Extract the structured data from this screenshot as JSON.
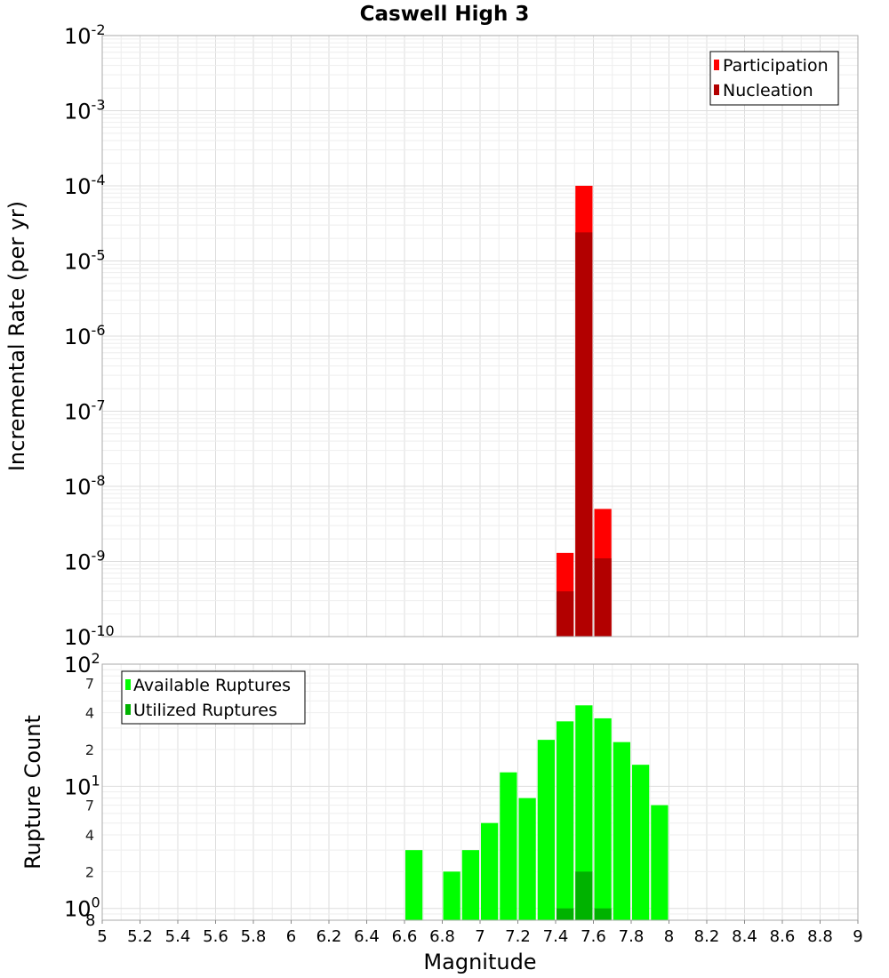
{
  "chart_data": [
    {
      "type": "bar",
      "title": "Caswell High 3",
      "xlabel": "Magnitude",
      "ylabel": "Incremental Rate (per yr)",
      "yscale": "log",
      "xlim": [
        5,
        9
      ],
      "ylim": [
        1e-10,
        0.01
      ],
      "y_tick_exponents": [
        "-10",
        "-9",
        "-8",
        "-7",
        "-6",
        "-5",
        "-4",
        "-3",
        "-2"
      ],
      "x_ticks": [
        "5",
        "5.2",
        "5.4",
        "5.6",
        "5.8",
        "6",
        "6.2",
        "6.4",
        "6.6",
        "6.8",
        "7",
        "7.2",
        "7.4",
        "7.6",
        "7.8",
        "8",
        "8.2",
        "8.4",
        "8.6",
        "8.8",
        "9"
      ],
      "bin_width": 0.1,
      "legend_position": "top-right",
      "series": [
        {
          "name": "Participation",
          "color": "#ff0000",
          "x": [
            7.45,
            7.55,
            7.65
          ],
          "values": [
            1.3e-09,
            0.0001,
            5e-09
          ]
        },
        {
          "name": "Nucleation",
          "color": "#b20000",
          "x": [
            7.45,
            7.55,
            7.65
          ],
          "values": [
            4e-10,
            2.4e-05,
            1.1e-09
          ]
        }
      ]
    },
    {
      "type": "bar",
      "ylabel": "Rupture Count",
      "yscale": "log",
      "ylim": [
        0.8,
        100
      ],
      "y_bottom_label": "8",
      "y_major_ticks": [
        {
          "base": "10",
          "exp": "0"
        },
        {
          "base": "10",
          "exp": "1"
        },
        {
          "base": "10",
          "exp": "2"
        }
      ],
      "y_minor_ticks": [
        "2",
        "4",
        "7",
        "2",
        "4",
        "7"
      ],
      "bin_width": 0.1,
      "legend_position": "top-left",
      "series": [
        {
          "name": "Available Ruptures",
          "color": "#00ff00",
          "x": [
            6.65,
            6.85,
            6.95,
            7.05,
            7.15,
            7.25,
            7.35,
            7.45,
            7.55,
            7.65,
            7.75,
            7.85,
            7.95
          ],
          "values": [
            3,
            2,
            3,
            5,
            13,
            8,
            24,
            34,
            46,
            36,
            23,
            15,
            7
          ]
        },
        {
          "name": "Utilized Ruptures",
          "color": "#00b200",
          "x": [
            7.45,
            7.55,
            7.65
          ],
          "values": [
            1,
            2,
            1
          ]
        }
      ]
    }
  ]
}
